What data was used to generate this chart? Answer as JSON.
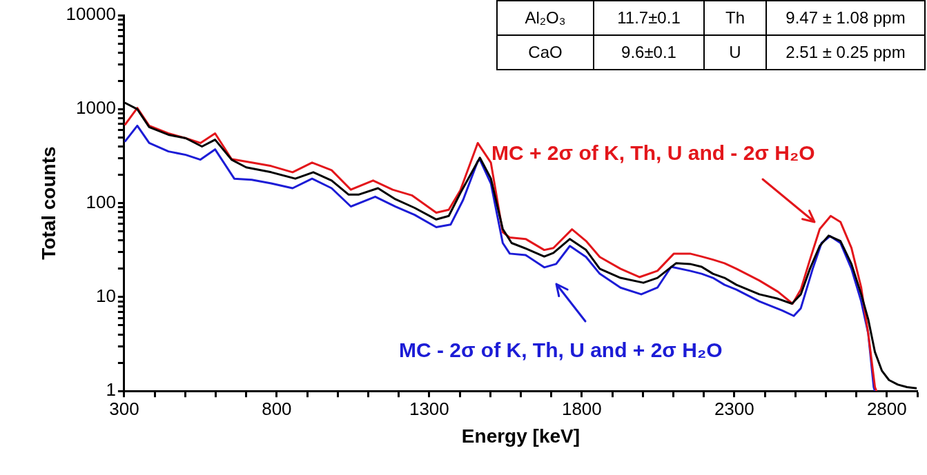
{
  "chart_data": {
    "type": "line",
    "xlabel": "Energy [keV]",
    "ylabel": "Total counts",
    "log": "y",
    "xlim": [
      300,
      2900
    ],
    "ylim": [
      1,
      10000
    ],
    "xticks": [
      300,
      {
        "value": 400,
        "label": null
      },
      {
        "value": 500,
        "label": null
      },
      {
        "value": 600,
        "label": null
      },
      {
        "value": 700,
        "label": null
      },
      800,
      {
        "value": 900,
        "label": null
      },
      {
        "value": 1000,
        "label": null
      },
      {
        "value": 1100,
        "label": null
      },
      {
        "value": 1200,
        "label": null
      },
      1300,
      {
        "value": 1400,
        "label": null
      },
      {
        "value": 1500,
        "label": null
      },
      {
        "value": 1600,
        "label": null
      },
      {
        "value": 1700,
        "label": null
      },
      1800,
      {
        "value": 1900,
        "label": null
      },
      {
        "value": 2000,
        "label": null
      },
      {
        "value": 2100,
        "label": null
      },
      {
        "value": 2200,
        "label": null
      },
      2300,
      {
        "value": 2400,
        "label": null
      },
      {
        "value": 2500,
        "label": null
      },
      {
        "value": 2600,
        "label": null
      },
      {
        "value": 2700,
        "label": null
      },
      2800,
      {
        "value": 2900,
        "label": null
      }
    ],
    "yticks": [
      1,
      {
        "value": 2,
        "label": null
      },
      {
        "value": 3,
        "label": null
      },
      {
        "value": 4,
        "label": null
      },
      {
        "value": 5,
        "label": null
      },
      {
        "value": 6,
        "label": null
      },
      {
        "value": 7,
        "label": null
      },
      {
        "value": 8,
        "label": null
      },
      {
        "value": 9,
        "label": null
      },
      10,
      {
        "value": 20,
        "label": null
      },
      {
        "value": 30,
        "label": null
      },
      {
        "value": 40,
        "label": null
      },
      {
        "value": 50,
        "label": null
      },
      {
        "value": 60,
        "label": null
      },
      {
        "value": 70,
        "label": null
      },
      {
        "value": 80,
        "label": null
      },
      {
        "value": 90,
        "label": null
      },
      100,
      {
        "value": 200,
        "label": null
      },
      {
        "value": 300,
        "label": null
      },
      {
        "value": 400,
        "label": null
      },
      {
        "value": 500,
        "label": null
      },
      {
        "value": 600,
        "label": null
      },
      {
        "value": 700,
        "label": null
      },
      {
        "value": 800,
        "label": null
      },
      {
        "value": 900,
        "label": null
      },
      1000,
      {
        "value": 2000,
        "label": null
      },
      {
        "value": 3000,
        "label": null
      },
      {
        "value": 4000,
        "label": null
      },
      {
        "value": 5000,
        "label": null
      },
      {
        "value": 6000,
        "label": null
      },
      {
        "value": 7000,
        "label": null
      },
      {
        "value": 8000,
        "label": null
      },
      {
        "value": 9000,
        "label": null
      },
      10000
    ],
    "annotations": [
      "Al₂O₃",
      "11.7±0.1",
      "Th",
      "9.47 ± 1.08 ppm",
      "CaO",
      "9.6±0.1",
      "U",
      "2.51 ± 0.25 ppm"
    ],
    "series": [
      {
        "color": "#000000",
        "x": [
          302,
          343,
          382,
          445,
          502,
          555,
          598,
          652,
          700,
          782,
          861,
          920,
          980,
          1036,
          1068,
          1132,
          1189,
          1252,
          1323,
          1364,
          1402,
          1466,
          1502,
          1541,
          1570,
          1625,
          1677,
          1707,
          1761,
          1814,
          1859,
          1927,
          2002,
          2048,
          2109,
          2155,
          2193,
          2230,
          2268,
          2307,
          2382,
          2443,
          2489,
          2518,
          2548,
          2580,
          2609,
          2648,
          2684,
          2716,
          2739,
          2761,
          2784,
          2807,
          2836,
          2866,
          2898
        ],
        "values": [
          1170,
          1000,
          644,
          534,
          490,
          400,
          473,
          290,
          240,
          213,
          182,
          213,
          174,
          123,
          123,
          144,
          110,
          89,
          67,
          73,
          128,
          304,
          183,
          53,
          37.6,
          32,
          27,
          29.5,
          41.5,
          31.7,
          20,
          16,
          14.2,
          16,
          22.9,
          22.5,
          21,
          17.7,
          16,
          13.5,
          10.7,
          9.6,
          8.5,
          10.7,
          20,
          35,
          45,
          39.5,
          22.5,
          10.7,
          5.8,
          2.6,
          1.64,
          1.31,
          1.17,
          1.1,
          1.07
        ]
      },
      {
        "name": "MC + 2σ of K, Th, U and - 2σ H₂O",
        "color": "#e3161b",
        "x": [
          302,
          343,
          382,
          445,
          502,
          550,
          598,
          652,
          718,
          782,
          852,
          916,
          980,
          1043,
          1116,
          1180,
          1243,
          1323,
          1364,
          1402,
          1459,
          1502,
          1541,
          1564,
          1616,
          1677,
          1707,
          1768,
          1814,
          1859,
          1927,
          1989,
          2048,
          2102,
          2155,
          2193,
          2230,
          2268,
          2307,
          2382,
          2443,
          2491,
          2518,
          2548,
          2580,
          2616,
          2648,
          2684,
          2716,
          2739,
          2761,
          2766
        ],
        "values": [
          676,
          1030,
          666,
          552,
          490,
          436,
          552,
          294,
          270,
          248,
          213,
          270,
          224,
          139,
          174,
          139,
          121,
          79,
          85,
          137,
          436,
          270,
          49,
          43,
          41.5,
          31.7,
          33.3,
          52.6,
          39.5,
          26.7,
          20,
          16.3,
          19,
          29,
          29,
          27,
          25,
          22.9,
          20,
          15,
          11.4,
          8.5,
          12,
          25,
          53,
          73,
          63,
          33.3,
          12.6,
          4.1,
          1.1,
          1
        ]
      },
      {
        "name": "MC - 2σ of K, Th, U and + 2σ H₂O",
        "color": "#1c1cd6",
        "x": [
          302,
          343,
          382,
          445,
          502,
          550,
          598,
          661,
          718,
          782,
          852,
          916,
          980,
          1043,
          1123,
          1189,
          1252,
          1323,
          1370,
          1411,
          1459,
          1466,
          1502,
          1541,
          1564,
          1616,
          1677,
          1716,
          1761,
          1814,
          1859,
          1927,
          1995,
          2048,
          2093,
          2155,
          2193,
          2230,
          2268,
          2307,
          2382,
          2457,
          2495,
          2518,
          2557,
          2586,
          2614,
          2648,
          2684,
          2716,
          2739,
          2757,
          2761
        ],
        "values": [
          450,
          666,
          436,
          355,
          326,
          290,
          373,
          182,
          177,
          162,
          144,
          182,
          144,
          92,
          117,
          92,
          75,
          55.5,
          59,
          108,
          279,
          290,
          162,
          37.6,
          29,
          28,
          20.7,
          22.5,
          35,
          26.7,
          17.7,
          12.6,
          10.7,
          12.6,
          21,
          19,
          17.7,
          16,
          13.5,
          12,
          9,
          7.2,
          6.3,
          7.6,
          20,
          37.6,
          44.5,
          37.6,
          20,
          9,
          4.1,
          1.1,
          1
        ]
      }
    ]
  }
}
